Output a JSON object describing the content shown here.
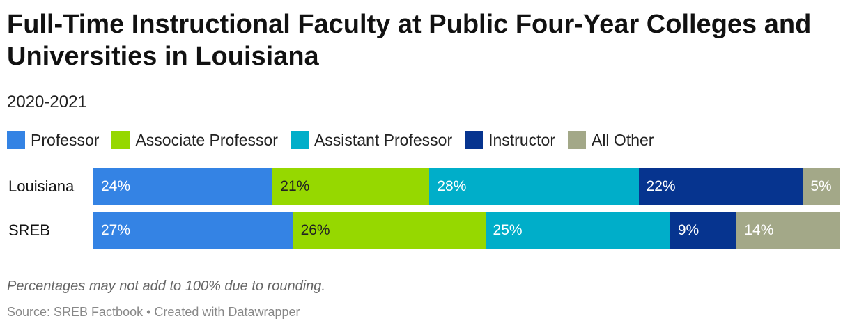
{
  "chart_data": {
    "type": "bar",
    "orientation": "horizontal",
    "stacked": true,
    "title": "Full-Time Instructional Faculty at Public Four-Year Colleges and Universities in Louisiana",
    "subtitle": "2020-2021",
    "categories": [
      "Louisiana",
      "SREB"
    ],
    "series": [
      {
        "name": "Professor",
        "color": "#3483e4",
        "label_color": "#ffffff",
        "values": [
          24,
          27
        ],
        "labels": [
          "24%",
          "27%"
        ]
      },
      {
        "name": "Associate Professor",
        "color": "#96d800",
        "label_color": "#222222",
        "values": [
          21,
          26
        ],
        "labels": [
          "21%",
          "26%"
        ]
      },
      {
        "name": "Assistant Professor",
        "color": "#00aec9",
        "label_color": "#ffffff",
        "values": [
          28,
          25
        ],
        "labels": [
          "28%",
          "25%"
        ]
      },
      {
        "name": "Instructor",
        "color": "#06348f",
        "label_color": "#ffffff",
        "values": [
          22,
          9
        ],
        "labels": [
          "22%",
          "9%"
        ]
      },
      {
        "name": "All Other",
        "color": "#a3a888",
        "label_color": "#ffffff",
        "values": [
          5,
          14
        ],
        "labels": [
          "5%",
          "14%"
        ]
      }
    ],
    "legend_position": "top-left",
    "grid": false
  },
  "footer": {
    "note": "Percentages may not add to 100% due to rounding.",
    "source": "Source: SREB Factbook • Created with Datawrapper"
  }
}
